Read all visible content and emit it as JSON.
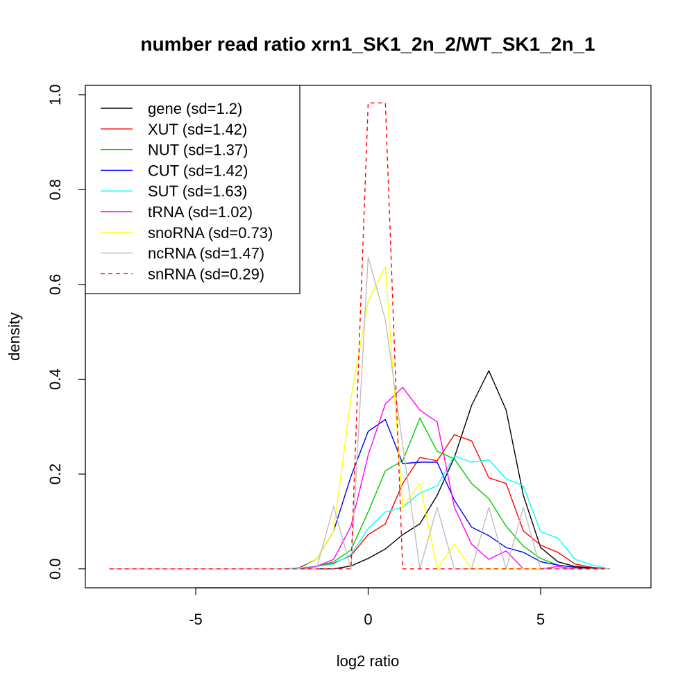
{
  "chart_data": {
    "type": "line",
    "title": "number read ratio xrn1_SK1_2n_2/WT_SK1_2n_1",
    "xlabel": "log2 ratio",
    "ylabel": "density",
    "xlim": [
      -8.2,
      8.2
    ],
    "ylim": [
      -0.04,
      1.02
    ],
    "xticks": [
      -5,
      0,
      5
    ],
    "xtick_labels": [
      "-5",
      "0",
      "5"
    ],
    "yticks": [
      0.0,
      0.2,
      0.4,
      0.6,
      0.8,
      1.0
    ],
    "ytick_labels": [
      "0.0",
      "0.2",
      "0.4",
      "0.6",
      "0.8",
      "1.0"
    ],
    "grid": false,
    "legend_position": "top-left",
    "x": [
      -7.5,
      -7.0,
      -6.5,
      -6.0,
      -5.5,
      -5.0,
      -4.5,
      -4.0,
      -3.5,
      -3.0,
      -2.5,
      -2.0,
      -1.5,
      -1.0,
      -0.5,
      0.0,
      0.5,
      1.0,
      1.5,
      2.0,
      2.5,
      3.0,
      3.5,
      4.0,
      4.5,
      5.0,
      5.5,
      6.0,
      6.5,
      7.0
    ],
    "series": [
      {
        "name": "gene (sd=1.2)",
        "color": "#000000",
        "dash": "solid",
        "values": [
          0,
          0,
          0,
          0,
          0,
          0,
          0,
          0,
          0,
          0,
          0,
          0,
          0,
          0,
          0.006,
          0.022,
          0.042,
          0.072,
          0.095,
          0.155,
          0.235,
          0.345,
          0.418,
          0.335,
          0.155,
          0.045,
          0.015,
          0.005,
          0.002,
          0
        ]
      },
      {
        "name": "XUT (sd=1.42)",
        "color": "#ff0000",
        "dash": "solid",
        "values": [
          0,
          0,
          0,
          0,
          0,
          0,
          0,
          0,
          0,
          0,
          0,
          0.002,
          0.005,
          0.012,
          0.028,
          0.072,
          0.095,
          0.18,
          0.235,
          0.228,
          0.283,
          0.27,
          0.192,
          0.18,
          0.08,
          0.05,
          0.035,
          0.01,
          0.003,
          0
        ]
      },
      {
        "name": "NUT (sd=1.37)",
        "color": "#00cd00",
        "dash": "solid",
        "values": [
          0,
          0,
          0,
          0,
          0,
          0,
          0,
          0,
          0,
          0,
          0,
          0,
          0.005,
          0.015,
          0.04,
          0.12,
          0.207,
          0.228,
          0.318,
          0.248,
          0.232,
          0.18,
          0.148,
          0.09,
          0.048,
          0.022,
          0.008,
          0.003,
          0,
          0
        ]
      },
      {
        "name": "CUT (sd=1.42)",
        "color": "#0000ff",
        "dash": "solid",
        "values": [
          0,
          0,
          0,
          0,
          0,
          0,
          0,
          0,
          0,
          0,
          0,
          0.002,
          0.02,
          0.08,
          0.195,
          0.29,
          0.315,
          0.222,
          0.225,
          0.225,
          0.145,
          0.088,
          0.07,
          0.045,
          0.035,
          0.015,
          0.008,
          0.003,
          0,
          0
        ]
      },
      {
        "name": "SUT (sd=1.63)",
        "color": "#00ffff",
        "dash": "solid",
        "values": [
          0,
          0,
          0,
          0,
          0,
          0,
          0,
          0,
          0,
          0,
          0,
          0.002,
          0.005,
          0.01,
          0.03,
          0.085,
          0.12,
          0.13,
          0.16,
          0.175,
          0.238,
          0.225,
          0.23,
          0.19,
          0.175,
          0.078,
          0.065,
          0.02,
          0.008,
          0
        ]
      },
      {
        "name": "tRNA (sd=1.02)",
        "color": "#ff00ff",
        "dash": "solid",
        "values": [
          0,
          0,
          0,
          0,
          0,
          0,
          0,
          0,
          0,
          0,
          0,
          0,
          0.005,
          0.02,
          0.09,
          0.24,
          0.348,
          0.383,
          0.335,
          0.31,
          0.13,
          0.052,
          0.02,
          0.038,
          0,
          0,
          0.005,
          0,
          0,
          0
        ]
      },
      {
        "name": "snoRNA (sd=0.73)",
        "color": "#ffff00",
        "dash": "solid",
        "values": [
          0,
          0,
          0,
          0,
          0,
          0,
          0,
          0,
          0,
          0,
          0,
          0,
          0.02,
          0.08,
          0.36,
          0.565,
          0.638,
          0.13,
          0.18,
          0,
          0.052,
          0,
          0,
          0,
          0,
          0,
          0,
          0,
          0,
          0
        ]
      },
      {
        "name": "ncRNA (sd=1.47)",
        "color": "#bebebe",
        "dash": "solid",
        "values": [
          0,
          0,
          0,
          0,
          0,
          0,
          0,
          0,
          0,
          0,
          0,
          0,
          0,
          0.132,
          0,
          0.658,
          0.525,
          0.262,
          0,
          0.13,
          0,
          0,
          0.13,
          0,
          0.13,
          0,
          0,
          0,
          0,
          0
        ]
      },
      {
        "name": "snRNA (sd=0.29)",
        "color": "#ff0000",
        "dash": "dashed",
        "values": [
          0,
          0,
          0,
          0,
          0,
          0,
          0,
          0,
          0,
          0,
          0,
          0,
          0,
          0,
          0,
          0.983,
          0.983,
          0,
          0,
          0,
          0,
          0,
          0,
          0,
          0,
          0,
          0,
          0,
          0,
          0
        ]
      }
    ]
  }
}
